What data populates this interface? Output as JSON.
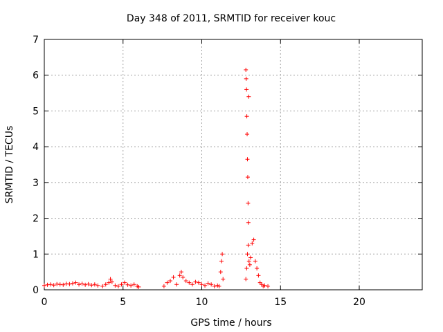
{
  "chart_data": {
    "type": "scatter",
    "title": "Day 348 of 2011, SRMTID for receiver kouc",
    "xlabel": "GPS time / hours",
    "ylabel": "SRMTID / TECUs",
    "xlim": [
      0,
      24
    ],
    "ylim": [
      0,
      7
    ],
    "x_ticks": [
      "0",
      "5",
      "10",
      "15",
      "20"
    ],
    "y_ticks": [
      "0",
      "1",
      "2",
      "3",
      "4",
      "5",
      "6",
      "7"
    ],
    "grid": true,
    "marker": "+",
    "marker_color": "#ff0000",
    "series": [
      {
        "x": [
          0.0,
          0.2,
          0.4,
          0.6,
          0.8,
          1.0,
          1.2,
          1.4,
          1.6,
          1.8,
          2.0,
          2.2,
          2.4,
          2.6,
          2.8,
          3.0,
          3.2,
          3.4,
          3.7,
          3.9,
          4.1,
          4.2,
          4.3,
          4.5,
          4.7,
          4.9,
          5.1,
          5.3,
          5.5,
          5.7,
          5.9,
          6.0,
          7.6,
          7.8,
          8.0,
          8.2,
          8.4,
          8.6,
          8.7,
          8.8,
          9.0,
          9.2,
          9.4,
          9.6,
          9.8,
          10.0,
          10.2,
          10.4,
          10.6,
          10.8,
          11.0,
          11.1,
          11.2,
          11.25,
          11.3,
          11.35,
          12.8,
          12.85,
          12.9,
          12.95,
          13.0,
          13.05,
          13.1,
          13.2,
          13.3,
          13.4,
          13.5,
          13.6,
          13.7,
          13.8,
          13.9,
          14.0,
          14.2,
          12.8,
          12.82,
          12.84,
          12.86,
          12.88,
          12.9,
          12.92,
          12.94,
          12.96,
          12.98
        ],
        "y": [
          0.12,
          0.14,
          0.15,
          0.13,
          0.16,
          0.15,
          0.14,
          0.17,
          0.16,
          0.18,
          0.2,
          0.15,
          0.17,
          0.14,
          0.16,
          0.13,
          0.15,
          0.12,
          0.1,
          0.15,
          0.2,
          0.3,
          0.22,
          0.12,
          0.1,
          0.15,
          0.2,
          0.14,
          0.12,
          0.15,
          0.1,
          0.08,
          0.1,
          0.2,
          0.25,
          0.35,
          0.15,
          0.4,
          0.5,
          0.35,
          0.25,
          0.2,
          0.15,
          0.22,
          0.2,
          0.15,
          0.12,
          0.18,
          0.15,
          0.1,
          0.12,
          0.1,
          0.5,
          0.8,
          1.0,
          0.3,
          0.3,
          0.6,
          1.0,
          1.25,
          0.8,
          0.7,
          0.9,
          1.3,
          1.4,
          0.8,
          0.6,
          0.4,
          0.2,
          0.15,
          0.1,
          0.12,
          0.1,
          6.15,
          5.9,
          5.6,
          4.85,
          4.35,
          3.65,
          3.15,
          2.42,
          1.88,
          5.4
        ]
      }
    ]
  }
}
